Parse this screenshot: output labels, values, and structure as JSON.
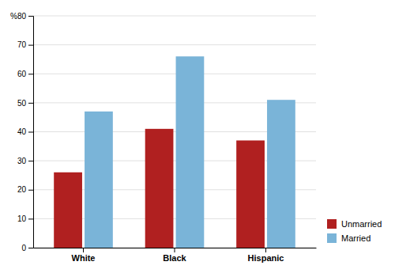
{
  "chart_data": {
    "type": "bar",
    "categories": [
      "White",
      "Black",
      "Hispanic"
    ],
    "series": [
      {
        "name": "Unmarried",
        "color": "#B02020",
        "values": [
          26,
          41,
          37
        ]
      },
      {
        "name": "Married",
        "color": "#7AB4D8",
        "values": [
          47,
          66,
          51
        ]
      }
    ],
    "ylim": [
      0,
      80
    ],
    "yticks": [
      0,
      10,
      20,
      30,
      40,
      50,
      60,
      70,
      {
        "value": 80,
        "label": "%80"
      }
    ],
    "grid": true,
    "legend": "lower right"
  }
}
